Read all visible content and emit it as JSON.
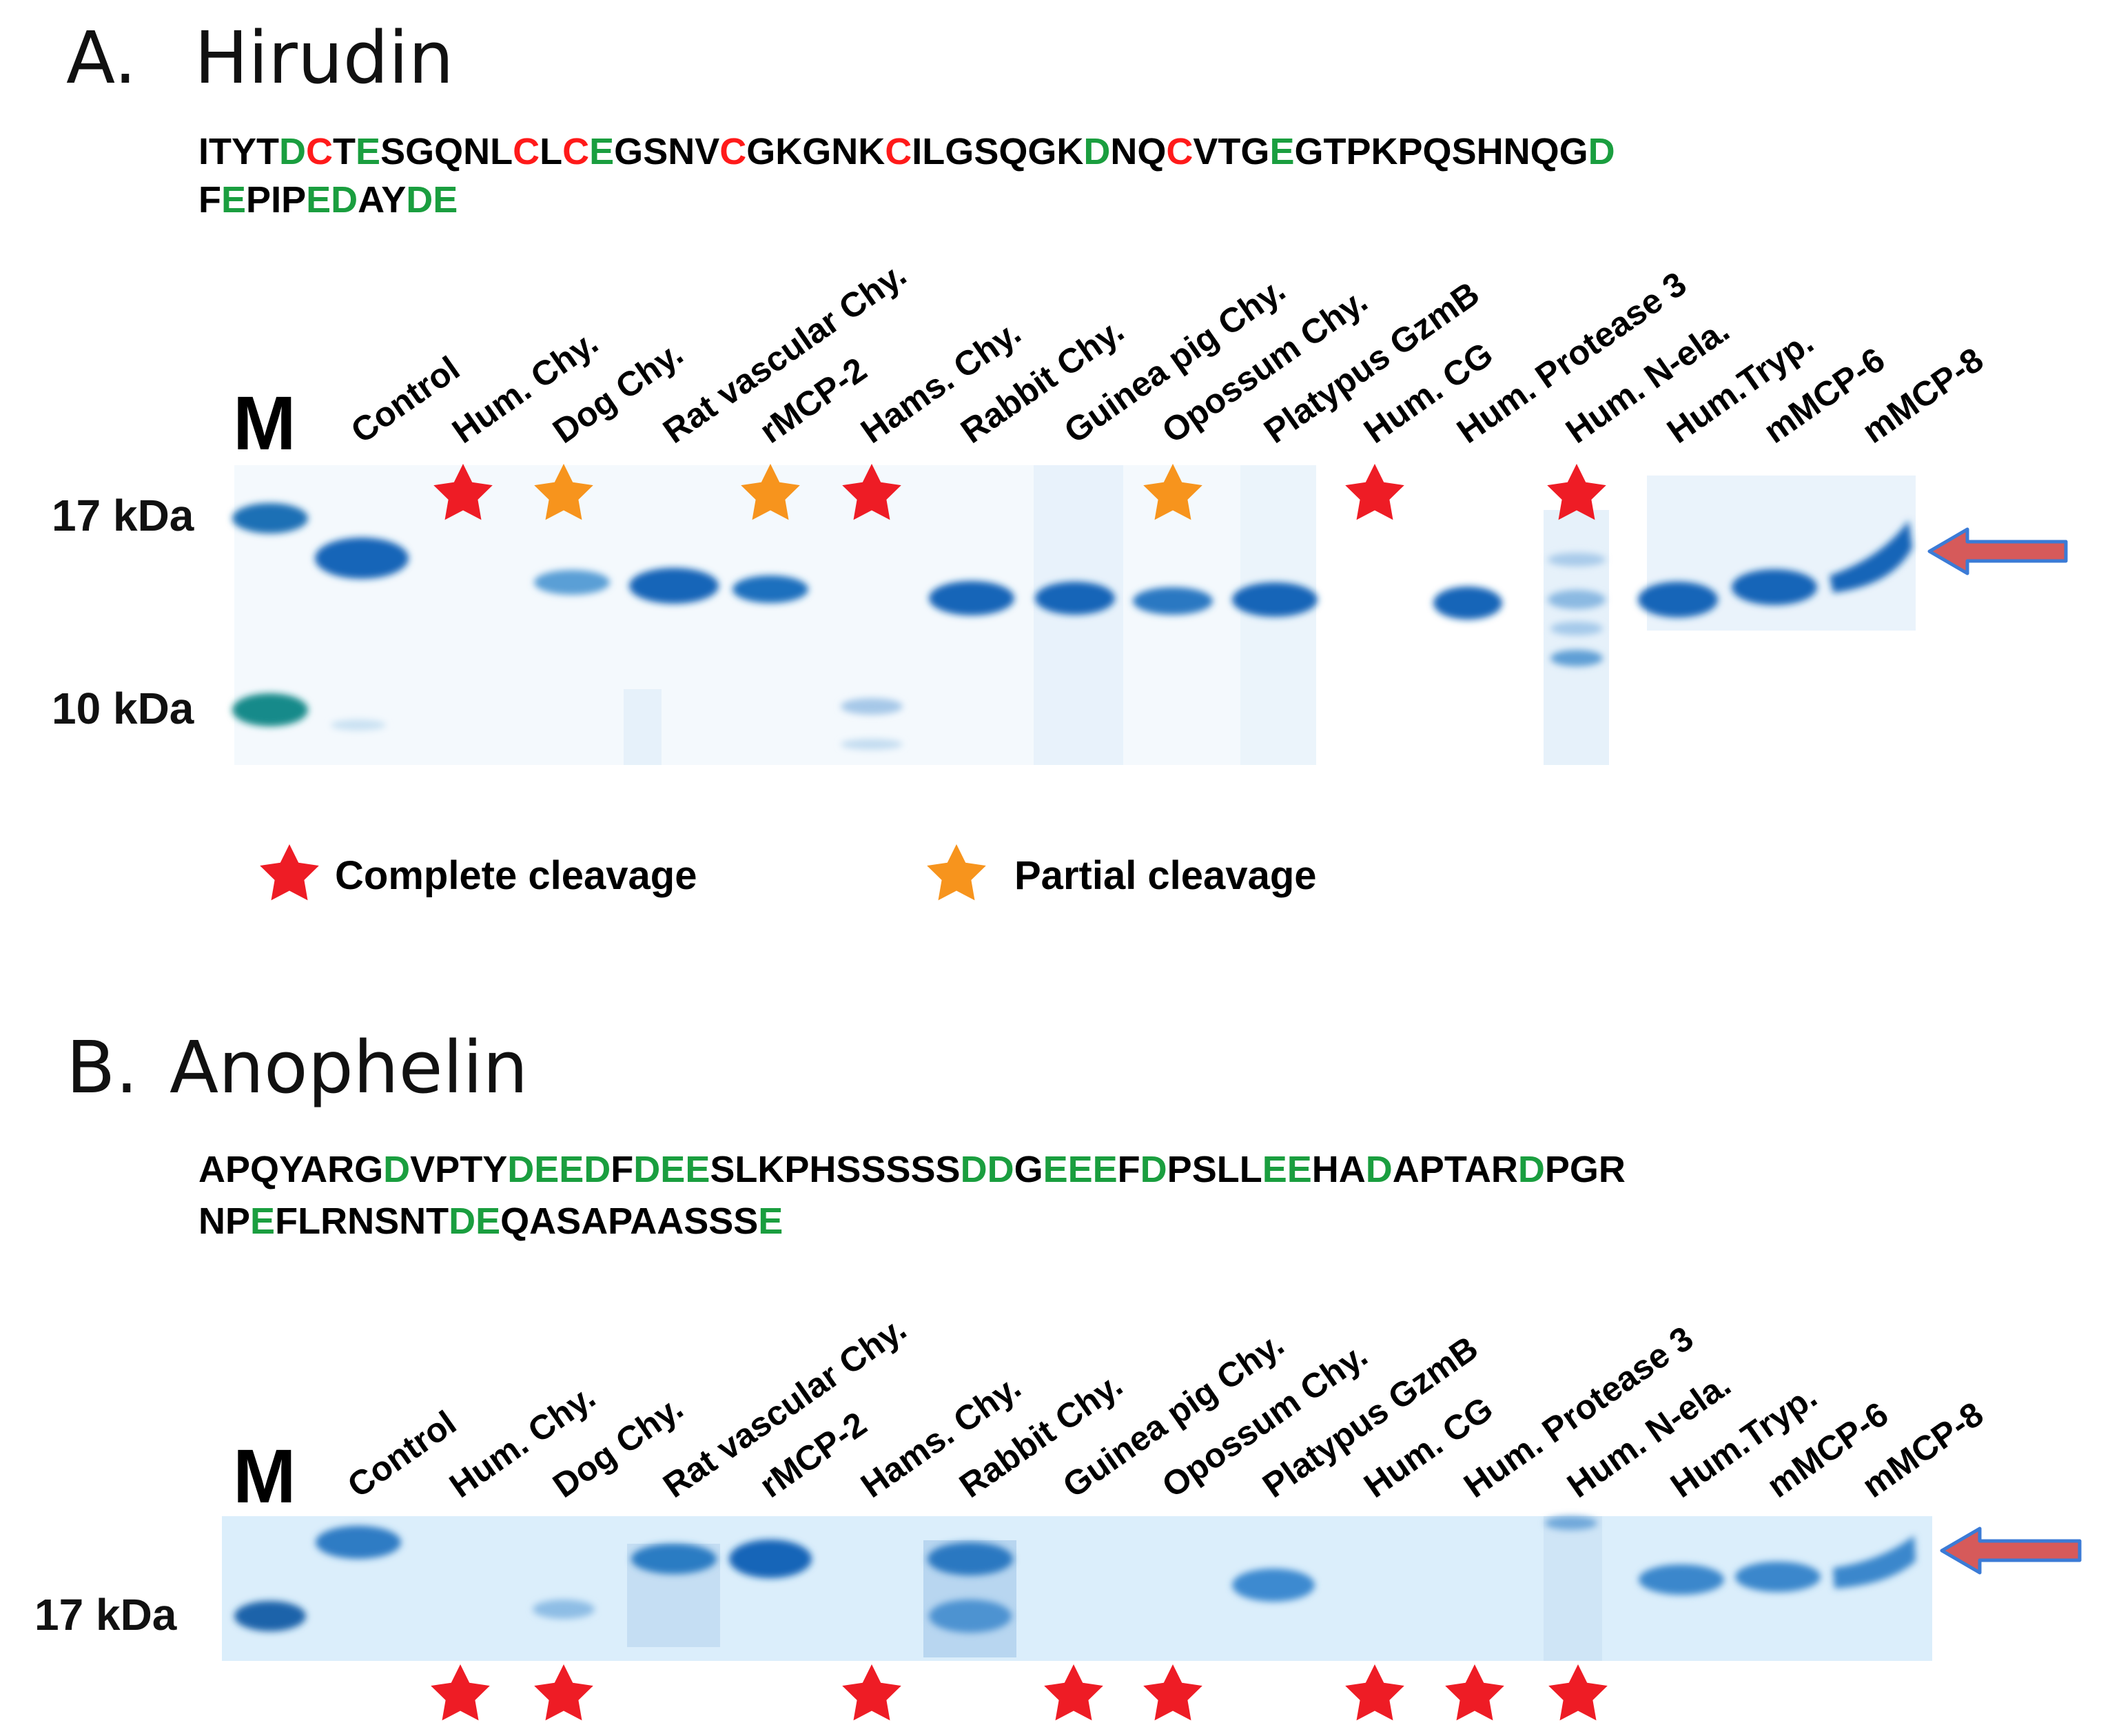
{
  "colors": {
    "complete": "#ee1c25",
    "partial": "#f7941d",
    "acidic": "#1a9e3f",
    "cysteine": "#ff1a1a",
    "residue": "#000000",
    "gel_bg": "#dbeefb",
    "band": "#1565b8",
    "arrow_fill": "#d65a5a",
    "arrow_edge": "#3b7bd6"
  },
  "lanes": [
    "Control",
    "Hum. Chy.",
    "Dog Chy.",
    "Rat vascular Chy.",
    "rMCP-2",
    "Hams. Chy.",
    "Rabbit Chy.",
    "Guinea pig Chy.",
    "Opossum Chy.",
    "Platypus GzmB",
    "Hum. CG",
    "Hum. Protease 3",
    "Hum. N-ela.",
    "Hum.Tryp.",
    "mMCP-6",
    "mMCP-8"
  ],
  "legend": {
    "complete": "Complete cleavage",
    "partial": "Partial cleavage"
  },
  "panels": [
    {
      "id": "A",
      "letter": "A.",
      "title": "Hirudin",
      "sequence_lines": [
        "ITYTDCTESGQNLCLCEGSNVCGKGNKCILGSQGKDNQCVTGEGTPKPQSHNQGD",
        "FEPIPEDAYDE"
      ],
      "marker": "M",
      "mw_labels": [
        "17 kDa",
        "10 kDa"
      ],
      "cleavage": {
        "Hum. Chy.": "complete",
        "Dog Chy.": "partial",
        "rMCP-2": "partial",
        "Hams. Chy.": "complete",
        "Opossum Chy.": "partial",
        "Hum. CG": "complete",
        "Hum. N-ela.": "complete"
      }
    },
    {
      "id": "B",
      "letter": "B.",
      "title": "Anophelin",
      "sequence_lines": [
        "APQYARGDVPTYDEEDFDEESLKPHSSSSSDDGEEEFDPSLLEEHADAPTARDPGR",
        "NPEFLRNSNTDEQASAPAASSSE"
      ],
      "marker": "M",
      "mw_labels": [
        "17 kDa"
      ],
      "cleavage": {
        "Hum. Chy.": "complete",
        "Dog Chy.": "complete",
        "Hams. Chy.": "complete",
        "Guinea pig Chy.": "complete",
        "Opossum Chy.": "complete",
        "Hum. CG": "complete",
        "Hum. Protease 3": "complete",
        "Hum. N-ela.": "complete"
      }
    }
  ]
}
